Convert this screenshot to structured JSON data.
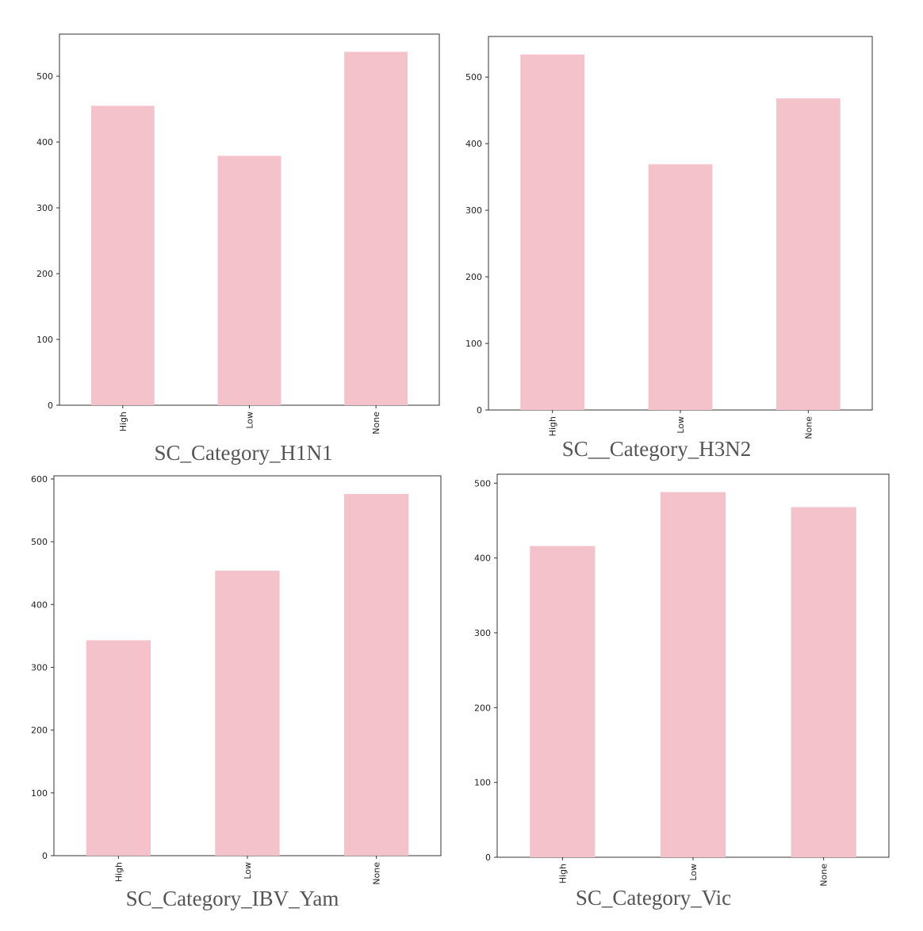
{
  "figure": {
    "panels": [
      "h1n1",
      "h3n2",
      "ibv_yam",
      "vic"
    ]
  },
  "chart_data": [
    {
      "type": "bar",
      "title": "SC_Category_H1N1",
      "categories": [
        "High",
        "Low",
        "None"
      ],
      "values": [
        455,
        379,
        537
      ],
      "yticks": [
        0,
        100,
        200,
        300,
        400,
        500
      ],
      "ylim": [
        0,
        564
      ],
      "xlabel": "",
      "ylabel": "",
      "color": "#f4c2cb",
      "grid": false
    },
    {
      "type": "bar",
      "title": "SC__Category_H3N2",
      "categories": [
        "High",
        "Low",
        "None"
      ],
      "values": [
        534,
        369,
        468
      ],
      "yticks": [
        0,
        100,
        200,
        300,
        400,
        500
      ],
      "ylim": [
        0,
        561
      ],
      "xlabel": "",
      "ylabel": "",
      "color": "#f4c2cb",
      "grid": false
    },
    {
      "type": "bar",
      "title": "SC_Category_IBV_Yam",
      "categories": [
        "High",
        "Low",
        "None"
      ],
      "values": [
        343,
        454,
        576
      ],
      "yticks": [
        0,
        100,
        200,
        300,
        400,
        500,
        600
      ],
      "ylim": [
        0,
        605
      ],
      "xlabel": "",
      "ylabel": "",
      "color": "#f4c2cb",
      "grid": false
    },
    {
      "type": "bar",
      "title": "SC_Category_Vic",
      "categories": [
        "High",
        "Low",
        "None"
      ],
      "values": [
        416,
        488,
        468
      ],
      "yticks": [
        0,
        100,
        200,
        300,
        400,
        500
      ],
      "ylim": [
        0,
        512
      ],
      "xlabel": "",
      "ylabel": "",
      "color": "#f4c2cb",
      "grid": false
    }
  ]
}
